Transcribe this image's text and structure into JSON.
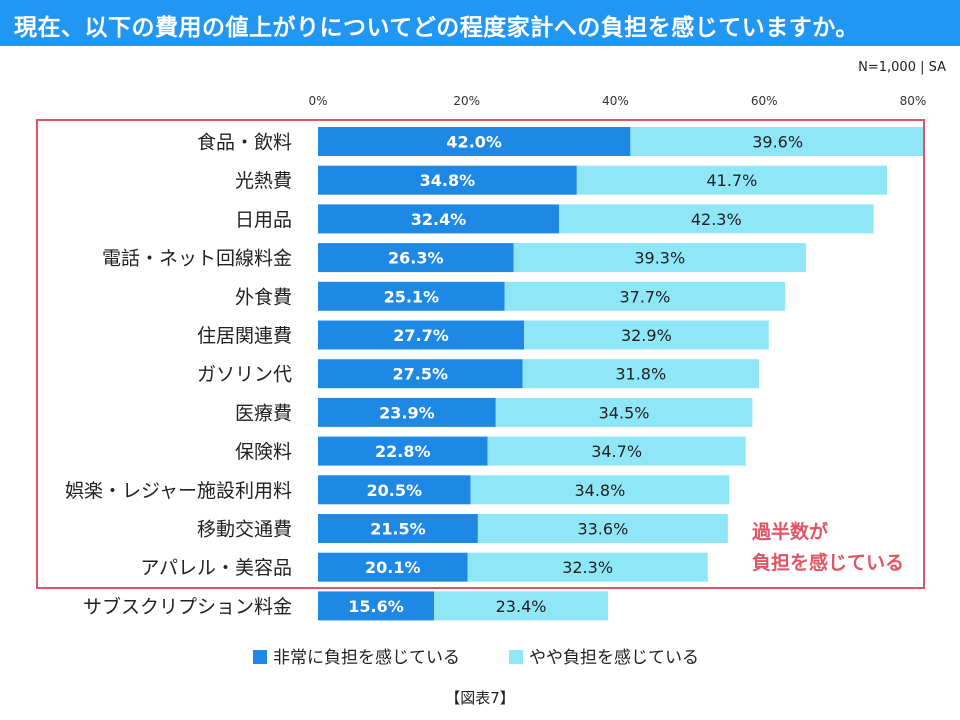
{
  "header": {
    "title": "現在、以下の費用の値上がりについてどの程度家計への負担を感じていますか。"
  },
  "note": "N=1,000 | SA",
  "caption": "【図表7】",
  "annotation": {
    "line1": "過半数が",
    "line2": "負担を感じている"
  },
  "colors": {
    "strong": "#1e88e5",
    "weak": "#8ee6f7",
    "frame": "#e05566",
    "header": "#2196f3"
  },
  "chart_data": {
    "type": "bar",
    "orientation": "horizontal",
    "stacked": true,
    "xlim": [
      0,
      80
    ],
    "xticks": [
      "0%",
      "20%",
      "40%",
      "60%",
      "80%"
    ],
    "categories": [
      "食品・飲料",
      "光熱費",
      "日用品",
      "電話・ネット回線料金",
      "外食費",
      "住居関連費",
      "ガソリン代",
      "医療費",
      "保険料",
      "娯楽・レジャー施設利用料",
      "移動交通費",
      "アパレル・美容品",
      "サブスクリプション料金"
    ],
    "series": [
      {
        "name": "非常に負担を感じている",
        "values": [
          42.0,
          34.8,
          32.4,
          26.3,
          25.1,
          27.7,
          27.5,
          23.9,
          22.8,
          20.5,
          21.5,
          20.1,
          15.6
        ]
      },
      {
        "name": "やや負担を感じている",
        "values": [
          39.6,
          41.7,
          42.3,
          39.3,
          37.7,
          32.9,
          31.8,
          34.5,
          34.7,
          34.8,
          33.6,
          32.3,
          23.4
        ]
      }
    ],
    "legend": "bottom"
  }
}
